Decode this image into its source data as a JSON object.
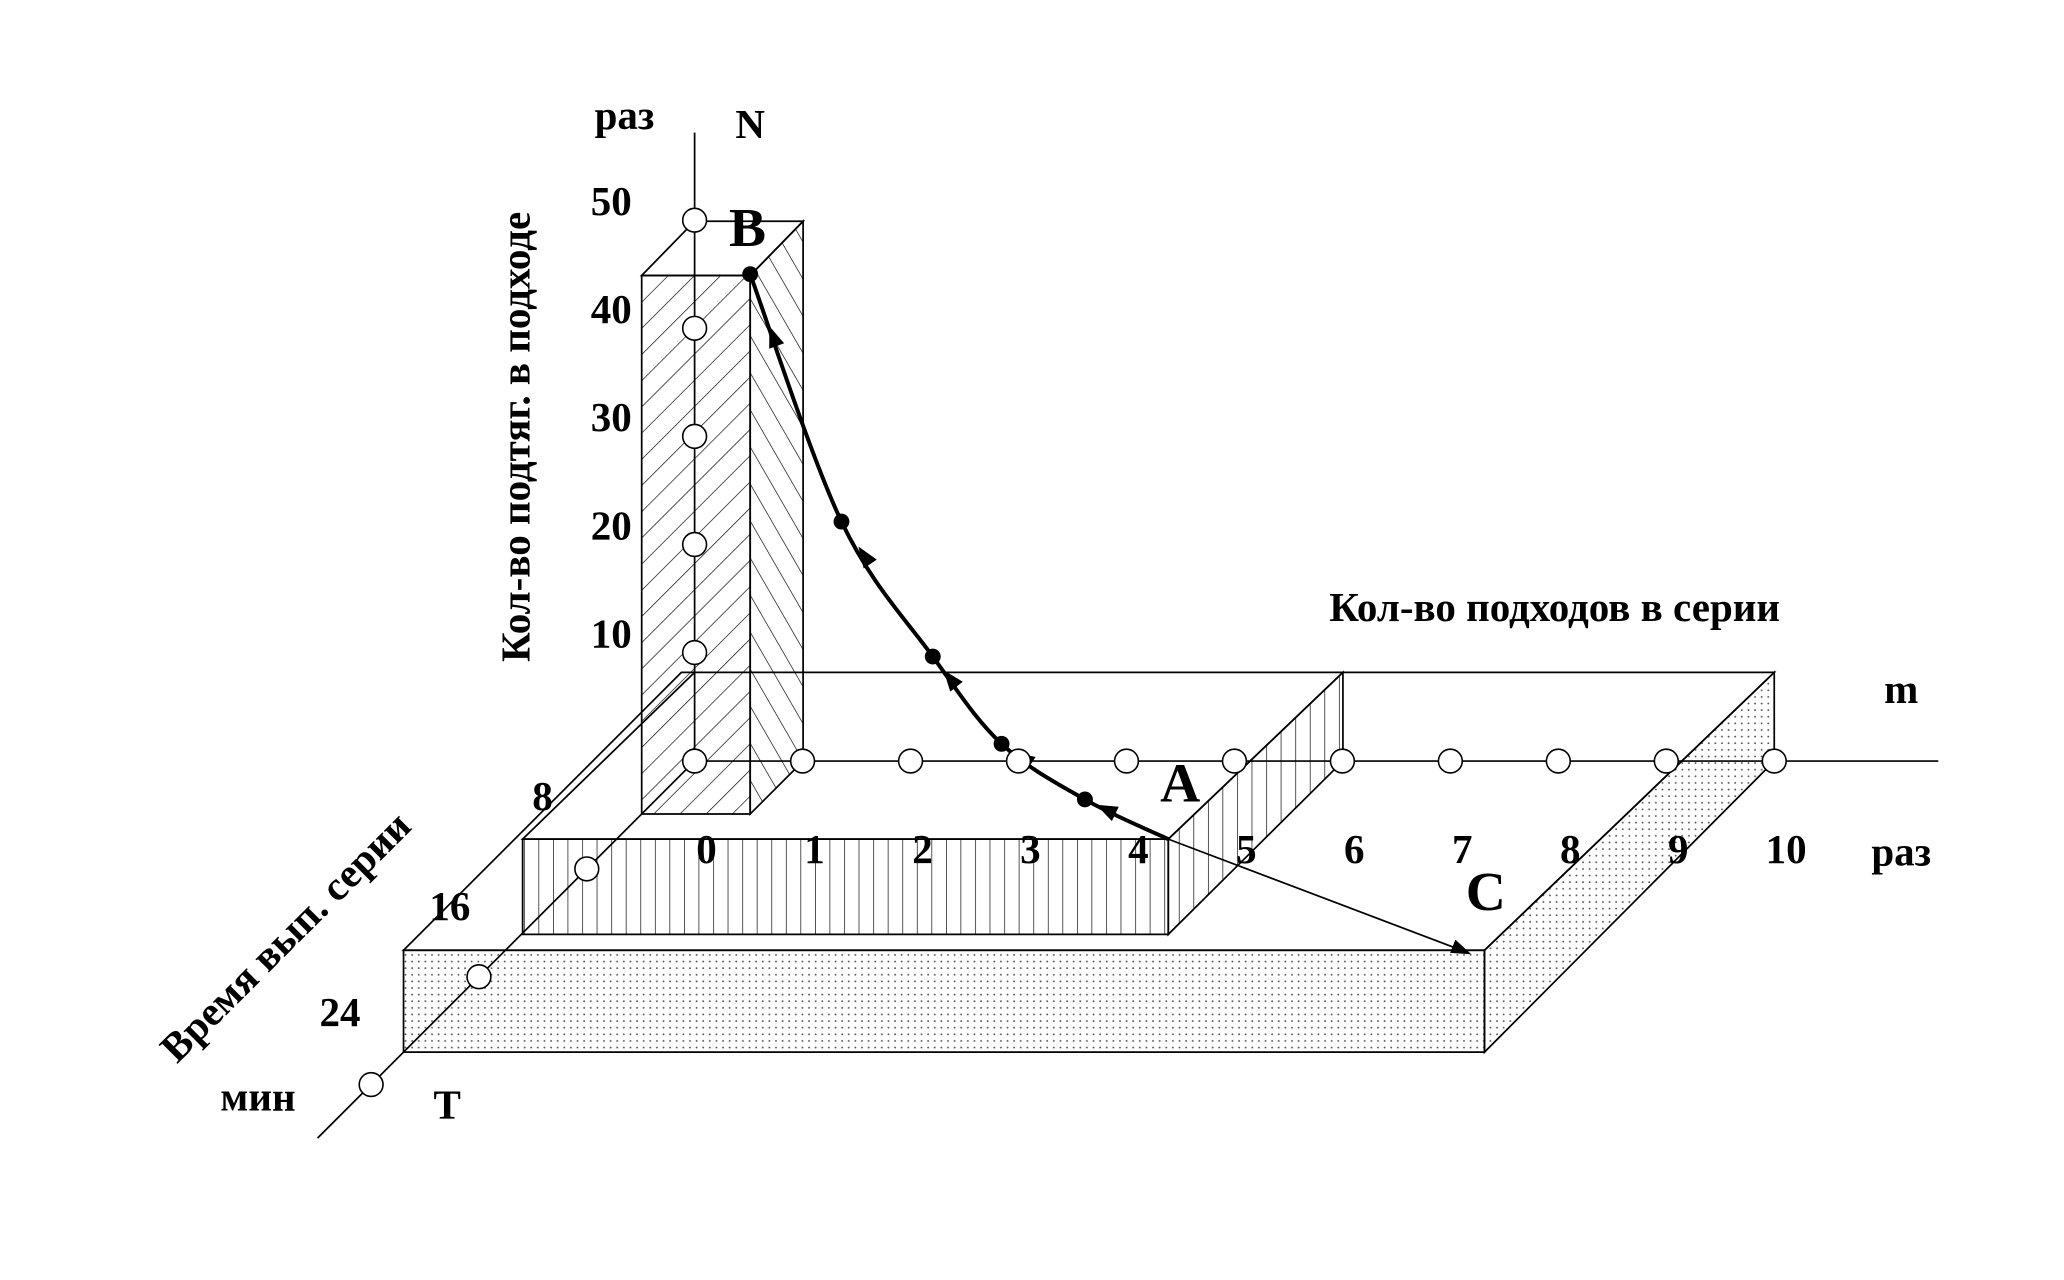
{
  "axes": {
    "n": {
      "label": "Кол-во подтяг. в подходе",
      "unit": "раз",
      "letter": "N",
      "ticks": [
        10,
        20,
        30,
        40,
        50
      ]
    },
    "m": {
      "label": "Кол-во подходов в серии",
      "unit": "раз",
      "letter": "m",
      "ticks": [
        0,
        1,
        2,
        3,
        4,
        5,
        6,
        7,
        8,
        9,
        10
      ]
    },
    "t": {
      "label": "Время вып. серии",
      "unit": "мин",
      "letter": "T",
      "ticks": [
        8,
        16,
        24
      ]
    }
  },
  "points": {
    "a": "A",
    "b": "B",
    "c": "C"
  }
}
